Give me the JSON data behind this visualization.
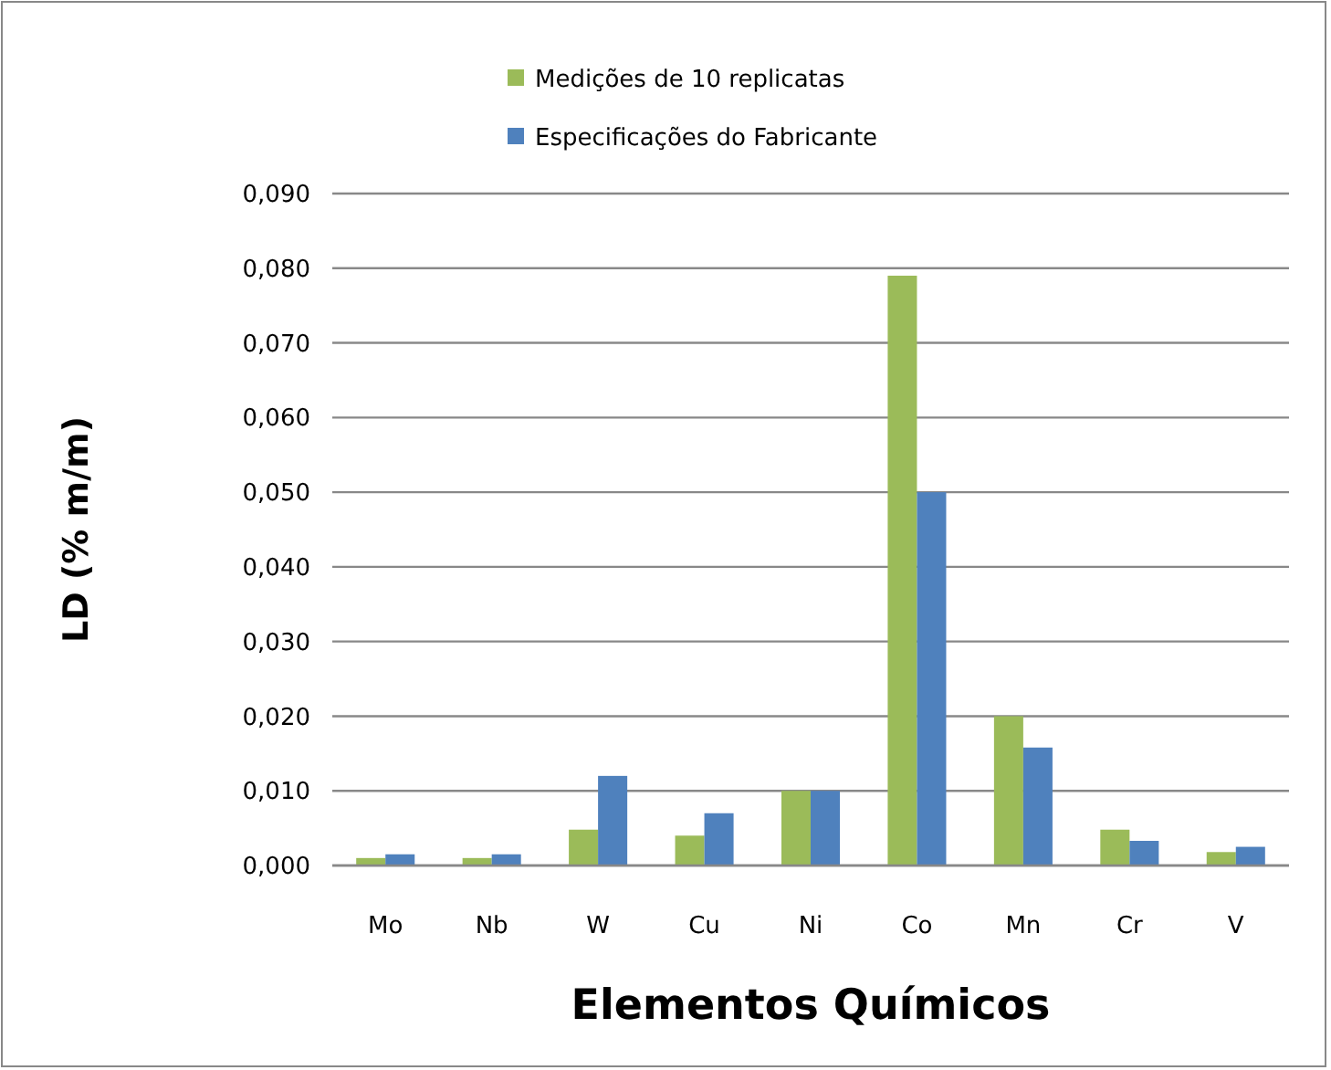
{
  "chart_data": {
    "type": "bar",
    "xlabel": "Elementos Químicos",
    "ylabel": "LD (% m/m)",
    "categories": [
      "Mo",
      "Nb",
      "W",
      "Cu",
      "Ni",
      "Co",
      "Mn",
      "Cr",
      "V"
    ],
    "series": [
      {
        "name": "Medições de 10 replicatas",
        "color": "#9bbb59",
        "values": [
          0.001,
          0.001,
          0.0048,
          0.004,
          0.01,
          0.079,
          0.02,
          0.0048,
          0.0018
        ]
      },
      {
        "name": "Especificações do Fabricante",
        "color": "#4f81bd",
        "values": [
          0.0015,
          0.0015,
          0.012,
          0.007,
          0.01,
          0.05,
          0.0158,
          0.0033,
          0.0025
        ]
      }
    ],
    "ylim": [
      0,
      0.09
    ],
    "yticks": [
      {
        "value": 0,
        "label": "0,000"
      },
      {
        "value": 0.01,
        "label": "0,010"
      },
      {
        "value": 0.02,
        "label": "0,020"
      },
      {
        "value": 0.03,
        "label": "0,030"
      },
      {
        "value": 0.04,
        "label": "0,040"
      },
      {
        "value": 0.05,
        "label": "0,050"
      },
      {
        "value": 0.06,
        "label": "0,060"
      },
      {
        "value": 0.07,
        "label": "0,070"
      },
      {
        "value": 0.08,
        "label": "0,080"
      },
      {
        "value": 0.09,
        "label": "0,090"
      }
    ],
    "grid": "y",
    "legend": "top"
  }
}
